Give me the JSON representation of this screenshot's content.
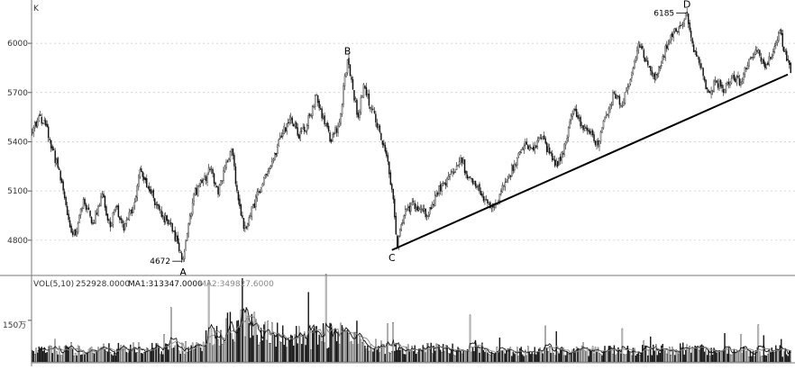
{
  "chart_data": [
    {
      "type": "candlestick",
      "panel": "price",
      "title": "K",
      "ylim": [
        4640,
        6220
      ],
      "y_ticks": [
        4800,
        5100,
        5400,
        5700,
        6000
      ],
      "grid": true,
      "close_path": [
        {
          "bar": 0,
          "v": 5450
        },
        {
          "bar": 5,
          "v": 5560
        },
        {
          "bar": 10,
          "v": 5500
        },
        {
          "bar": 15,
          "v": 5350
        },
        {
          "bar": 22,
          "v": 5150
        },
        {
          "bar": 28,
          "v": 4880
        },
        {
          "bar": 32,
          "v": 4830
        },
        {
          "bar": 38,
          "v": 5050
        },
        {
          "bar": 45,
          "v": 4900
        },
        {
          "bar": 52,
          "v": 5080
        },
        {
          "bar": 58,
          "v": 4880
        },
        {
          "bar": 62,
          "v": 5000
        },
        {
          "bar": 68,
          "v": 4860
        },
        {
          "bar": 75,
          "v": 5000
        },
        {
          "bar": 80,
          "v": 5230
        },
        {
          "bar": 86,
          "v": 5120
        },
        {
          "bar": 92,
          "v": 5020
        },
        {
          "bar": 97,
          "v": 4950
        },
        {
          "bar": 102,
          "v": 4900
        },
        {
          "bar": 108,
          "v": 4780
        },
        {
          "bar": 112,
          "v": 4690
        },
        {
          "bar": 116,
          "v": 4900
        },
        {
          "bar": 120,
          "v": 5080
        },
        {
          "bar": 126,
          "v": 5150
        },
        {
          "bar": 132,
          "v": 5230
        },
        {
          "bar": 138,
          "v": 5080
        },
        {
          "bar": 143,
          "v": 5250
        },
        {
          "bar": 148,
          "v": 5350
        },
        {
          "bar": 152,
          "v": 5100
        },
        {
          "bar": 157,
          "v": 4870
        },
        {
          "bar": 162,
          "v": 4950
        },
        {
          "bar": 168,
          "v": 5100
        },
        {
          "bar": 174,
          "v": 5200
        },
        {
          "bar": 180,
          "v": 5330
        },
        {
          "bar": 186,
          "v": 5450
        },
        {
          "bar": 192,
          "v": 5550
        },
        {
          "bar": 198,
          "v": 5420
        },
        {
          "bar": 204,
          "v": 5500
        },
        {
          "bar": 210,
          "v": 5680
        },
        {
          "bar": 216,
          "v": 5550
        },
        {
          "bar": 222,
          "v": 5400
        },
        {
          "bar": 228,
          "v": 5520
        },
        {
          "bar": 234,
          "v": 5900
        },
        {
          "bar": 238,
          "v": 5720
        },
        {
          "bar": 242,
          "v": 5550
        },
        {
          "bar": 246,
          "v": 5750
        },
        {
          "bar": 252,
          "v": 5600
        },
        {
          "bar": 258,
          "v": 5460
        },
        {
          "bar": 264,
          "v": 5280
        },
        {
          "bar": 268,
          "v": 5050
        },
        {
          "bar": 271,
          "v": 4760
        },
        {
          "bar": 276,
          "v": 4950
        },
        {
          "bar": 282,
          "v": 5030
        },
        {
          "bar": 288,
          "v": 5000
        },
        {
          "bar": 294,
          "v": 4950
        },
        {
          "bar": 300,
          "v": 5080
        },
        {
          "bar": 306,
          "v": 5150
        },
        {
          "bar": 312,
          "v": 5220
        },
        {
          "bar": 318,
          "v": 5300
        },
        {
          "bar": 324,
          "v": 5180
        },
        {
          "bar": 330,
          "v": 5120
        },
        {
          "bar": 336,
          "v": 5050
        },
        {
          "bar": 342,
          "v": 5000
        },
        {
          "bar": 348,
          "v": 5100
        },
        {
          "bar": 354,
          "v": 5200
        },
        {
          "bar": 360,
          "v": 5300
        },
        {
          "bar": 366,
          "v": 5400
        },
        {
          "bar": 372,
          "v": 5350
        },
        {
          "bar": 378,
          "v": 5420
        },
        {
          "bar": 384,
          "v": 5330
        },
        {
          "bar": 390,
          "v": 5250
        },
        {
          "bar": 396,
          "v": 5400
        },
        {
          "bar": 402,
          "v": 5600
        },
        {
          "bar": 408,
          "v": 5500
        },
        {
          "bar": 414,
          "v": 5450
        },
        {
          "bar": 420,
          "v": 5380
        },
        {
          "bar": 426,
          "v": 5560
        },
        {
          "bar": 432,
          "v": 5700
        },
        {
          "bar": 438,
          "v": 5620
        },
        {
          "bar": 444,
          "v": 5780
        },
        {
          "bar": 450,
          "v": 6000
        },
        {
          "bar": 456,
          "v": 5900
        },
        {
          "bar": 462,
          "v": 5780
        },
        {
          "bar": 468,
          "v": 5920
        },
        {
          "bar": 474,
          "v": 6050
        },
        {
          "bar": 480,
          "v": 6100
        },
        {
          "bar": 486,
          "v": 6185
        },
        {
          "bar": 490,
          "v": 6000
        },
        {
          "bar": 496,
          "v": 5850
        },
        {
          "bar": 502,
          "v": 5700
        },
        {
          "bar": 508,
          "v": 5760
        },
        {
          "bar": 514,
          "v": 5720
        },
        {
          "bar": 520,
          "v": 5800
        },
        {
          "bar": 526,
          "v": 5760
        },
        {
          "bar": 532,
          "v": 5900
        },
        {
          "bar": 538,
          "v": 5950
        },
        {
          "bar": 544,
          "v": 5850
        },
        {
          "bar": 550,
          "v": 5950
        },
        {
          "bar": 555,
          "v": 6080
        },
        {
          "bar": 558,
          "v": 5950
        },
        {
          "bar": 563,
          "v": 5820
        }
      ],
      "total_bars": 564,
      "annotations": [
        {
          "text": "A",
          "bar": 112,
          "v": 4672,
          "placement": "below"
        },
        {
          "text": "4672",
          "bar": 112,
          "v": 4672,
          "placement": "left-leader"
        },
        {
          "text": "B",
          "bar": 234,
          "v": 5900,
          "placement": "above"
        },
        {
          "text": "C",
          "bar": 271,
          "v": 4760,
          "placement": "below-left"
        },
        {
          "text": "D",
          "bar": 486,
          "v": 6185,
          "placement": "above"
        },
        {
          "text": "6185",
          "bar": 486,
          "v": 6185,
          "placement": "left-leader"
        }
      ],
      "trendline": {
        "from": {
          "bar": 271,
          "v": 4740
        },
        "to": {
          "bar": 563,
          "v": 5810
        }
      }
    },
    {
      "type": "bar",
      "panel": "volume",
      "legend_items": [
        {
          "text": "VOL(5,10)",
          "color": "#333333"
        },
        {
          "text": "252928.0000",
          "color": "#333333"
        },
        {
          "text": "MA1:313347.0000",
          "color": "#111111"
        },
        {
          "text": "MA2:349827.6000",
          "color": "#888888"
        }
      ],
      "y_tick_label": "150万",
      "y_tick_value": 1500000,
      "ylim": [
        0,
        2600000
      ],
      "volume_profile": [
        {
          "bar": 0,
          "v": 420000
        },
        {
          "bar": 60,
          "v": 500000
        },
        {
          "bar": 120,
          "v": 560000
        },
        {
          "bar": 128,
          "v": 900000
        },
        {
          "bar": 145,
          "v": 1250000
        },
        {
          "bar": 158,
          "v": 1500000
        },
        {
          "bar": 172,
          "v": 1300000
        },
        {
          "bar": 190,
          "v": 1050000
        },
        {
          "bar": 210,
          "v": 950000
        },
        {
          "bar": 230,
          "v": 1150000
        },
        {
          "bar": 245,
          "v": 800000
        },
        {
          "bar": 262,
          "v": 600000
        },
        {
          "bar": 300,
          "v": 520000
        },
        {
          "bar": 360,
          "v": 430000
        },
        {
          "bar": 430,
          "v": 440000
        },
        {
          "bar": 480,
          "v": 520000
        },
        {
          "bar": 520,
          "v": 420000
        },
        {
          "bar": 563,
          "v": 380000
        }
      ]
    }
  ]
}
